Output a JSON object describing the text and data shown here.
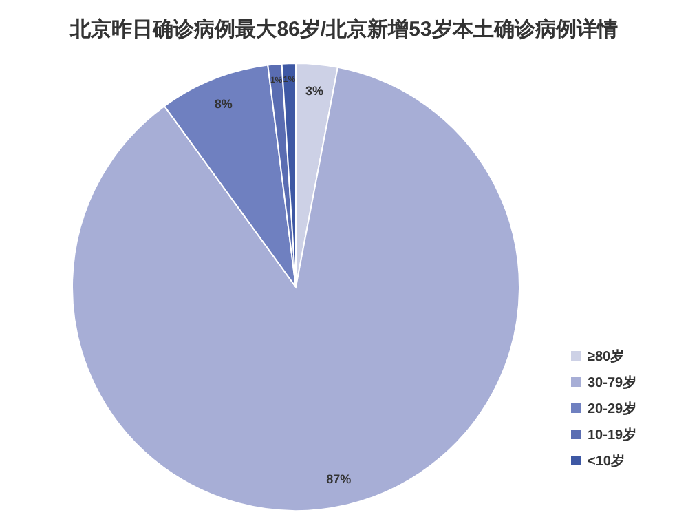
{
  "chart_data": {
    "type": "pie",
    "title": "北京昨日确诊病例最大86岁/北京新增53岁本土确诊病例详情",
    "categories": [
      "≥80岁",
      "30-79岁",
      "20-29岁",
      "10-19岁",
      "<10岁"
    ],
    "values": [
      3,
      87,
      8,
      1,
      1
    ],
    "colors": [
      "#cdd1e6",
      "#a7aed6",
      "#6f80c0",
      "#5a6db2",
      "#3e58a4"
    ],
    "value_labels": [
      "3%",
      "87%",
      "8%",
      "1%",
      "1%"
    ],
    "legend": "right"
  }
}
